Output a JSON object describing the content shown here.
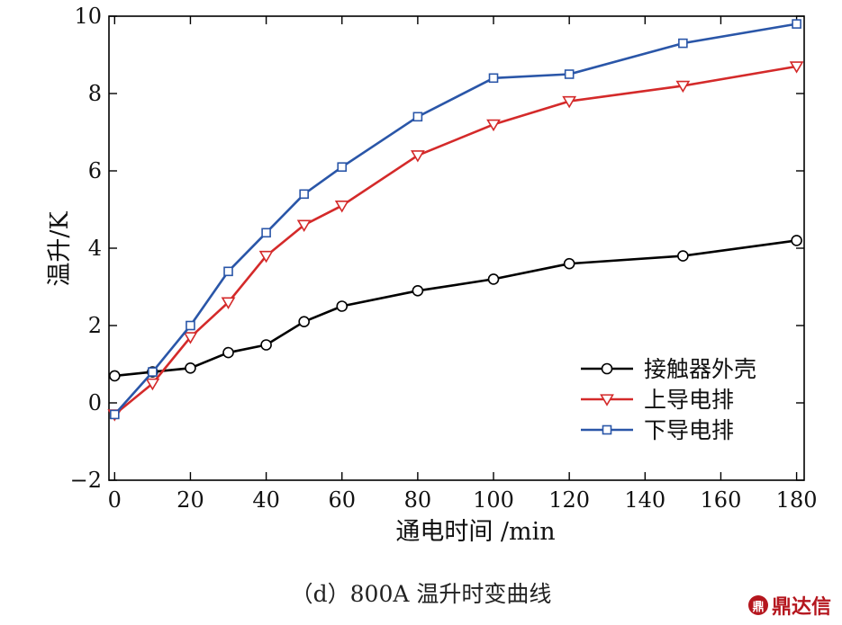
{
  "chart_data": {
    "type": "line",
    "xlabel": "通电时间 /min",
    "ylabel": "温升/K",
    "xlim": [
      -1.5,
      182
    ],
    "ylim": [
      -2,
      10
    ],
    "xticks": [
      0,
      20,
      40,
      60,
      80,
      100,
      120,
      140,
      160,
      180
    ],
    "yticks": [
      -2,
      0,
      2,
      4,
      6,
      8,
      10
    ],
    "xtick_labels": [
      "0",
      "20",
      "40",
      "60",
      "80",
      "100",
      "120",
      "140",
      "160",
      "180"
    ],
    "ytick_labels": [
      "−2",
      "0",
      "2",
      "4",
      "6",
      "8",
      "10"
    ],
    "grid": false,
    "legend_position": "lower-right",
    "series": [
      {
        "name": "接触器外壳",
        "color": "#000000",
        "marker": "circle",
        "x": [
          0,
          10,
          20,
          30,
          40,
          50,
          60,
          80,
          100,
          120,
          150,
          180
        ],
        "y": [
          0.7,
          0.8,
          0.9,
          1.3,
          1.5,
          2.1,
          2.5,
          2.9,
          3.2,
          3.6,
          3.8,
          4.2
        ]
      },
      {
        "name": "上导电排",
        "color": "#d42a2a",
        "marker": "triangle-down",
        "x": [
          0,
          10,
          20,
          30,
          40,
          50,
          60,
          80,
          100,
          120,
          150,
          180
        ],
        "y": [
          -0.3,
          0.5,
          1.7,
          2.6,
          3.8,
          4.6,
          5.1,
          6.4,
          7.2,
          7.8,
          8.2,
          8.7
        ]
      },
      {
        "name": "下导电排",
        "color": "#2a56a8",
        "marker": "square",
        "x": [
          0,
          10,
          20,
          30,
          40,
          50,
          60,
          80,
          100,
          120,
          150,
          180
        ],
        "y": [
          -0.3,
          0.8,
          2.0,
          3.4,
          4.4,
          5.4,
          6.1,
          7.4,
          8.4,
          8.5,
          9.3,
          9.8
        ]
      }
    ]
  },
  "caption": "（d）800A 温升时变曲线",
  "watermark": {
    "mark": "鼎",
    "text": "鼎达信"
  }
}
